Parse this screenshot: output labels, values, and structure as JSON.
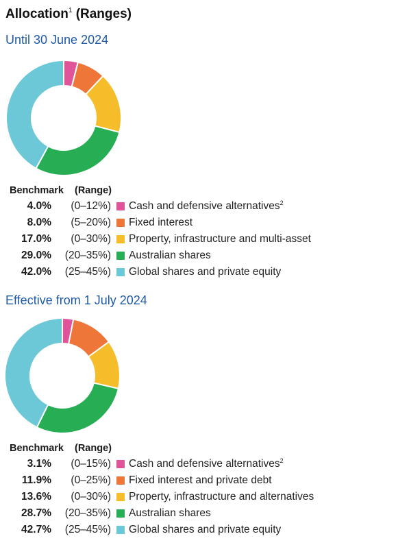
{
  "title": "Allocation",
  "title_sup": "1",
  "title_suffix": "(Ranges)",
  "colors": {
    "cash": "#e0559a",
    "fixed": "#ee7638",
    "property": "#f6bd2b",
    "australian": "#27ae54",
    "global": "#6cc8d6"
  },
  "chart_data": [
    {
      "type": "pie",
      "subtitle": "Until 30 June 2024",
      "header_benchmark": "Benchmark",
      "header_range": "(Range)",
      "categories": [
        "Cash and defensive alternatives",
        "Fixed interest",
        "Property, infrastructure and multi-asset",
        "Australian shares",
        "Global shares and private equity"
      ],
      "category_sup": [
        "2",
        "",
        "",
        "",
        ""
      ],
      "values": [
        4.0,
        8.0,
        17.0,
        29.0,
        42.0
      ],
      "benchmark_labels": [
        "4.0%",
        "8.0%",
        "17.0%",
        "29.0%",
        "42.0%"
      ],
      "ranges": [
        "(0–12%)",
        "(5–20%)",
        "(0–30%)",
        "(20–35%)",
        "(25–45%)"
      ],
      "color_keys": [
        "cash",
        "fixed",
        "property",
        "australian",
        "global"
      ]
    },
    {
      "type": "pie",
      "subtitle": "Effective from 1 July 2024",
      "header_benchmark": "Benchmark",
      "header_range": "(Range)",
      "categories": [
        "Cash and defensive alternatives",
        "Fixed interest and private debt",
        "Property, infrastructure and alternatives",
        "Australian shares",
        "Global shares and private equity"
      ],
      "category_sup": [
        "2",
        "",
        "",
        "",
        ""
      ],
      "values": [
        3.1,
        11.9,
        13.6,
        28.7,
        42.7
      ],
      "benchmark_labels": [
        "3.1%",
        "11.9%",
        "13.6%",
        "28.7%",
        "42.7%"
      ],
      "ranges": [
        "(0–15%)",
        "(0–25%)",
        "(0–30%)",
        "(20–35%)",
        "(25–45%)"
      ],
      "color_keys": [
        "cash",
        "fixed",
        "property",
        "australian",
        "global"
      ]
    }
  ]
}
